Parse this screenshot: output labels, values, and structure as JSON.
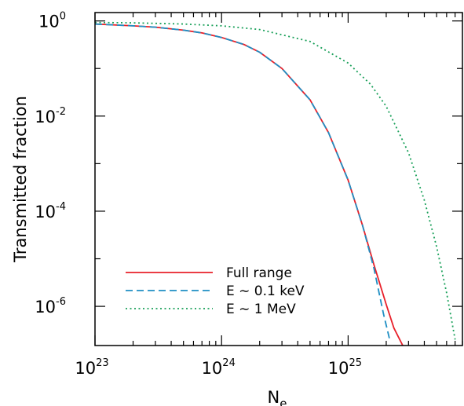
{
  "chart_data": {
    "type": "line",
    "title": "",
    "xlabel": "N",
    "xlabel_sub": "e",
    "ylabel": "Transmitted fraction",
    "xscale": "log",
    "yscale": "log",
    "xlim": [
      1e+23,
      8e+25
    ],
    "ylim": [
      1.5e-07,
      1.5
    ],
    "grid": false,
    "legend_position": "bottom-left",
    "x_ticks": [
      {
        "base": "10",
        "exp": "23",
        "value": 1e+23
      },
      {
        "base": "10",
        "exp": "24",
        "value": 1e+24
      },
      {
        "base": "10",
        "exp": "25",
        "value": 1e+25
      }
    ],
    "y_ticks": [
      {
        "base": "10",
        "exp": "0",
        "value": 1
      },
      {
        "base": "10",
        "exp": "-2",
        "value": 0.01
      },
      {
        "base": "10",
        "exp": "-4",
        "value": 0.0001
      },
      {
        "base": "10",
        "exp": "-6",
        "value": 1e-06
      }
    ],
    "series": [
      {
        "name": "Full range",
        "color": "#e8202a",
        "dash": "solid",
        "x": [
          1e+23,
          2e+23,
          3e+23,
          5e+23,
          7e+23,
          1e+24,
          1.5e+24,
          2e+24,
          3e+24,
          5e+24,
          7e+24,
          1e+25,
          1.3e+25,
          1.6e+25,
          2e+25,
          2.3e+25,
          2.7e+25
        ],
        "y": [
          0.86,
          0.79,
          0.74,
          0.64,
          0.56,
          0.45,
          0.32,
          0.22,
          0.1,
          0.022,
          0.0045,
          0.00045,
          5e-05,
          7.5e-06,
          1.1e-06,
          3.5e-07,
          1.5e-07
        ]
      },
      {
        "name": "E ∼ 0.1 keV",
        "color": "#1f8fc4",
        "dash": "dashed",
        "x": [
          1e+23,
          2e+23,
          3e+23,
          5e+23,
          7e+23,
          1e+24,
          1.5e+24,
          2e+24,
          3e+24,
          5e+24,
          7e+24,
          1e+25,
          1.3e+25,
          1.6e+25,
          1.9e+25,
          2.15e+25
        ],
        "y": [
          0.86,
          0.79,
          0.74,
          0.64,
          0.56,
          0.45,
          0.32,
          0.22,
          0.1,
          0.022,
          0.0045,
          0.00045,
          5e-05,
          6.3e-06,
          7e-07,
          1.8e-07
        ]
      },
      {
        "name": "E ∼ 1 MeV",
        "color": "#1aa05a",
        "dash": "dotted",
        "x": [
          1e+23,
          2e+23,
          5e+23,
          1e+24,
          2e+24,
          5e+24,
          1e+25,
          1.5e+25,
          2e+25,
          3e+25,
          4e+25,
          5e+25,
          6e+25,
          7e+25
        ],
        "y": [
          0.93,
          0.91,
          0.86,
          0.79,
          0.66,
          0.37,
          0.13,
          0.047,
          0.016,
          0.0017,
          0.00017,
          1.8e-05,
          1.9e-06,
          2e-07
        ]
      }
    ]
  }
}
